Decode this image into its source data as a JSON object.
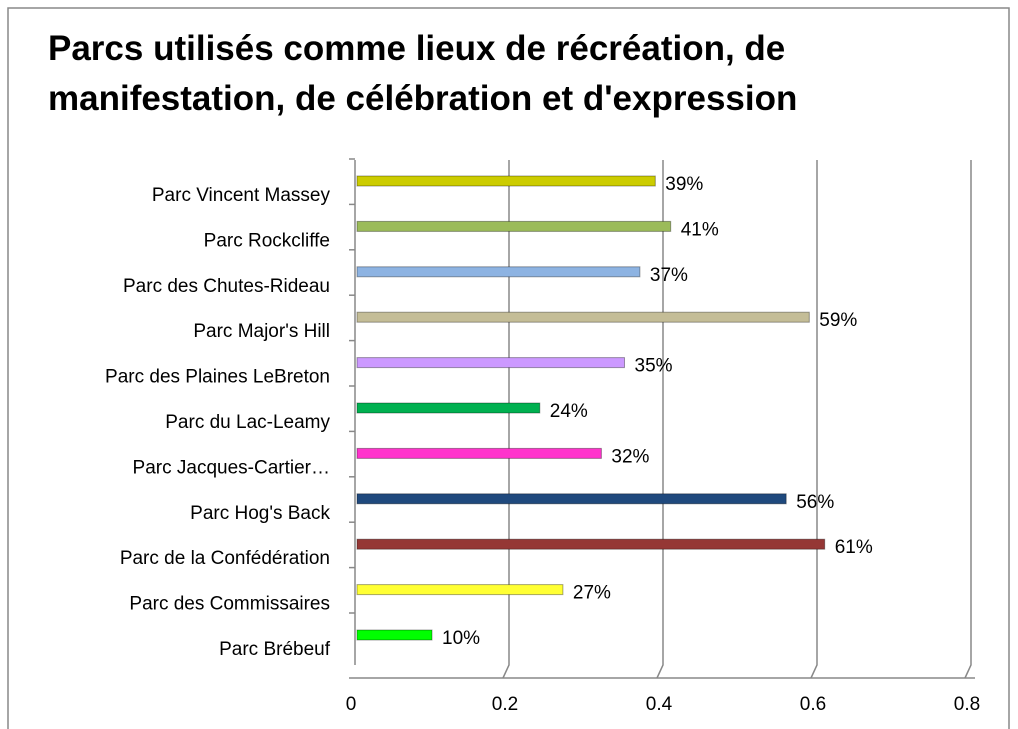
{
  "chart_data": {
    "type": "bar",
    "orientation": "horizontal",
    "title": [
      "Parcs utilisés comme lieux de récréation, de",
      "manifestation, de célébration et d'expression"
    ],
    "categories": [
      "Parc Vincent Massey",
      "Parc Rockcliffe",
      "Parc des Chutes-Rideau",
      "Parc Major's Hill",
      "Parc des Plaines LeBreton",
      "Parc du Lac-Leamy",
      "Parc Jacques-Cartier…",
      "Parc Hog's Back",
      "Parc de la Confédération",
      "Parc des Commissaires",
      "Parc Brébeuf"
    ],
    "values": [
      0.39,
      0.41,
      0.37,
      0.59,
      0.35,
      0.24,
      0.32,
      0.56,
      0.61,
      0.27,
      0.1
    ],
    "value_labels": [
      "39%",
      "41%",
      "37%",
      "59%",
      "35%",
      "24%",
      "32%",
      "56%",
      "61%",
      "27%",
      "10%"
    ],
    "colors": [
      "#cccc00",
      "#9bbb59",
      "#8db3e2",
      "#c4bd97",
      "#cc99ff",
      "#00b050",
      "#ff33cc",
      "#1f497d",
      "#953735",
      "#ffff33",
      "#00ff00"
    ],
    "xlim": [
      0,
      0.8
    ],
    "xticks": [
      0,
      0.2,
      0.4,
      0.6,
      0.8
    ],
    "grid": true
  }
}
